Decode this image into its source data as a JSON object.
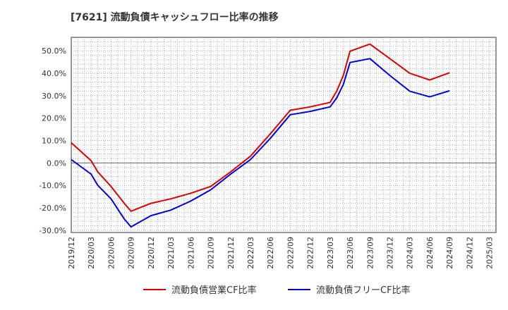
{
  "chart_data": {
    "type": "line",
    "title": "[7621]  流動負債キャッシュフロー比率の推移",
    "xlabel": "",
    "ylabel": "",
    "ylim": [
      -31,
      56
    ],
    "yticks": [
      50,
      40,
      30,
      20,
      10,
      0,
      -10,
      -20,
      -30
    ],
    "ytick_labels": [
      "50.0%",
      "40.0%",
      "30.0%",
      "20.0%",
      "10.0%",
      "0.0%",
      "-10.0%",
      "-20.0%",
      "-30.0%"
    ],
    "x_start": 2019.917,
    "x_end": 2025.25,
    "x_ticks": [
      {
        "label": "2019/12",
        "x": 2019.917
      },
      {
        "label": "2020/03",
        "x": 2020.167
      },
      {
        "label": "2020/06",
        "x": 2020.417
      },
      {
        "label": "2020/09",
        "x": 2020.667
      },
      {
        "label": "2020/12",
        "x": 2020.917
      },
      {
        "label": "2021/03",
        "x": 2021.167
      },
      {
        "label": "2021/06",
        "x": 2021.417
      },
      {
        "label": "2021/09",
        "x": 2021.667
      },
      {
        "label": "2021/12",
        "x": 2021.917
      },
      {
        "label": "2022/03",
        "x": 2022.167
      },
      {
        "label": "2022/06",
        "x": 2022.417
      },
      {
        "label": "2022/09",
        "x": 2022.667
      },
      {
        "label": "2022/12",
        "x": 2022.917
      },
      {
        "label": "2023/03",
        "x": 2023.167
      },
      {
        "label": "2023/06",
        "x": 2023.417
      },
      {
        "label": "2023/09",
        "x": 2023.667
      },
      {
        "label": "2023/12",
        "x": 2023.917
      },
      {
        "label": "2024/03",
        "x": 2024.167
      },
      {
        "label": "2024/06",
        "x": 2024.417
      },
      {
        "label": "2024/09",
        "x": 2024.667
      },
      {
        "label": "2024/12",
        "x": 2024.917
      },
      {
        "label": "2025/03",
        "x": 2025.167
      }
    ],
    "series": [
      {
        "name": "流動負債営業CF比率",
        "color": "#dd0000",
        "x": [
          2019.917,
          2020.167,
          2020.25,
          2020.417,
          2020.583,
          2020.667,
          2020.917,
          2021.167,
          2021.417,
          2021.667,
          2021.917,
          2022.167,
          2022.417,
          2022.667,
          2022.917,
          2023.167,
          2023.25,
          2023.333,
          2023.417,
          2023.667,
          2023.917,
          2024.167,
          2024.417,
          2024.667
        ],
        "y": [
          9.0,
          1.0,
          -4.0,
          -10.5,
          -18.0,
          -21.5,
          -18.0,
          -16.0,
          -13.5,
          -10.5,
          -4.0,
          3.0,
          13.0,
          23.5,
          25.0,
          27.0,
          32.0,
          39.0,
          49.8,
          53.0,
          46.5,
          40.0,
          37.0,
          40.2
        ]
      },
      {
        "name": "流動負債フリーCF比率",
        "color": "#0000dd",
        "x": [
          2019.917,
          2020.167,
          2020.25,
          2020.417,
          2020.583,
          2020.667,
          2020.917,
          2021.167,
          2021.417,
          2021.667,
          2021.917,
          2022.167,
          2022.417,
          2022.667,
          2022.917,
          2023.167,
          2023.25,
          2023.333,
          2023.417,
          2023.667,
          2023.917,
          2024.167,
          2024.417,
          2024.667
        ],
        "y": [
          1.5,
          -5.0,
          -10.0,
          -16.0,
          -25.0,
          -28.5,
          -23.5,
          -21.0,
          -17.0,
          -12.0,
          -5.0,
          1.5,
          11.0,
          21.5,
          23.0,
          25.0,
          29.0,
          35.0,
          44.8,
          46.5,
          39.0,
          32.0,
          29.5,
          32.2
        ]
      }
    ],
    "legend_position": "bottom-center",
    "grid": true
  }
}
